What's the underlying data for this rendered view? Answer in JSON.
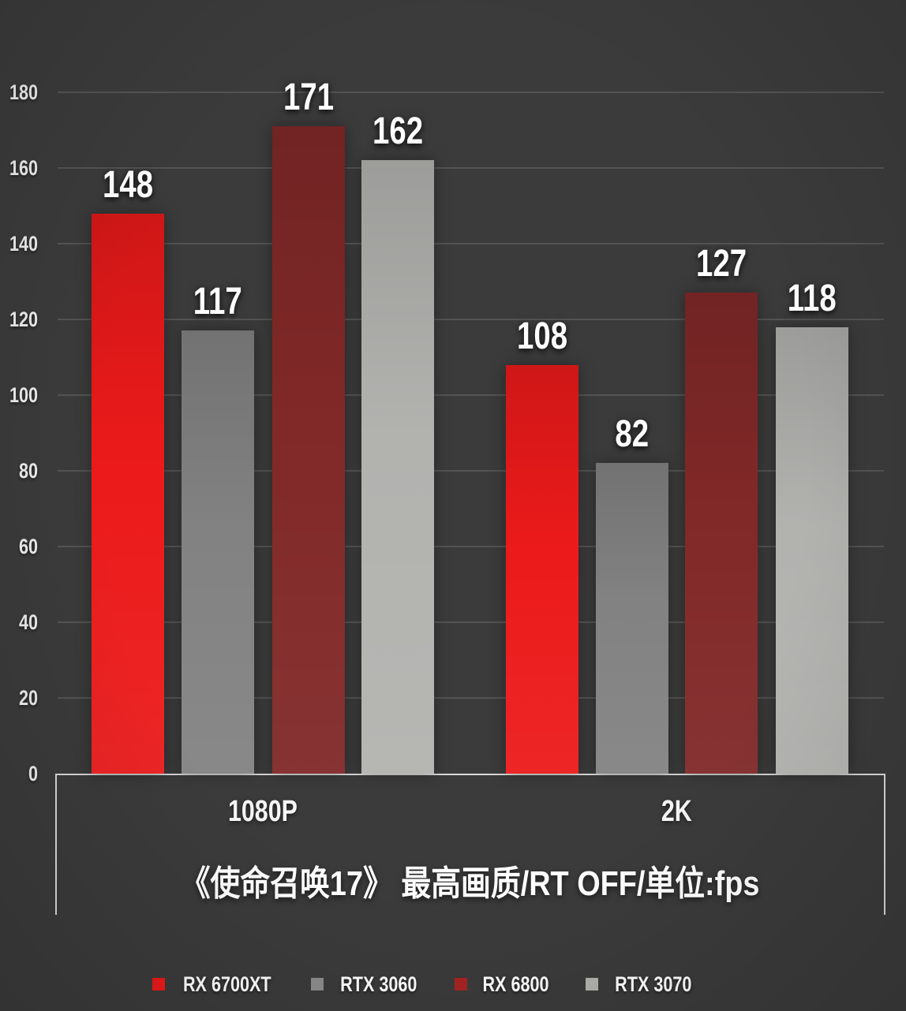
{
  "chart_data": {
    "type": "bar",
    "title": "《使命召唤17》 最高画质/RT OFF/单位:fps",
    "categories": [
      "1080P",
      "2K"
    ],
    "series": [
      {
        "name": "RX 6700XT",
        "color": "#ec1a1a",
        "legend_color": "#ec1a1a",
        "values": [
          148,
          108
        ]
      },
      {
        "name": "RTX 3060",
        "color": "#828282",
        "legend_color": "#8c8c8c",
        "values": [
          117,
          82
        ]
      },
      {
        "name": "RX 6800",
        "color": "#812828",
        "legend_color": "#a82323",
        "values": [
          171,
          127
        ]
      },
      {
        "name": "RTX 3070",
        "color": "#b2b2af",
        "legend_color": "#b2b2af",
        "values": [
          162,
          118
        ]
      }
    ],
    "xlabel": "",
    "ylabel": "",
    "ylim": [
      0,
      180
    ],
    "yticks": [
      0,
      20,
      40,
      60,
      80,
      100,
      120,
      140,
      160,
      180
    ],
    "grid": true,
    "legend_position": "bottom",
    "unit": "fps"
  },
  "colors": {
    "background": "#3b3b3b",
    "grid_line": "rgba(255,255,255,0.13)",
    "axis_box_border": "#d9d9d9",
    "text": "#ffffff",
    "accent_red": "#ec1a1a",
    "accent_maroon": "#812828",
    "accent_gray": "#828282",
    "accent_light_gray": "#b2b2af"
  }
}
